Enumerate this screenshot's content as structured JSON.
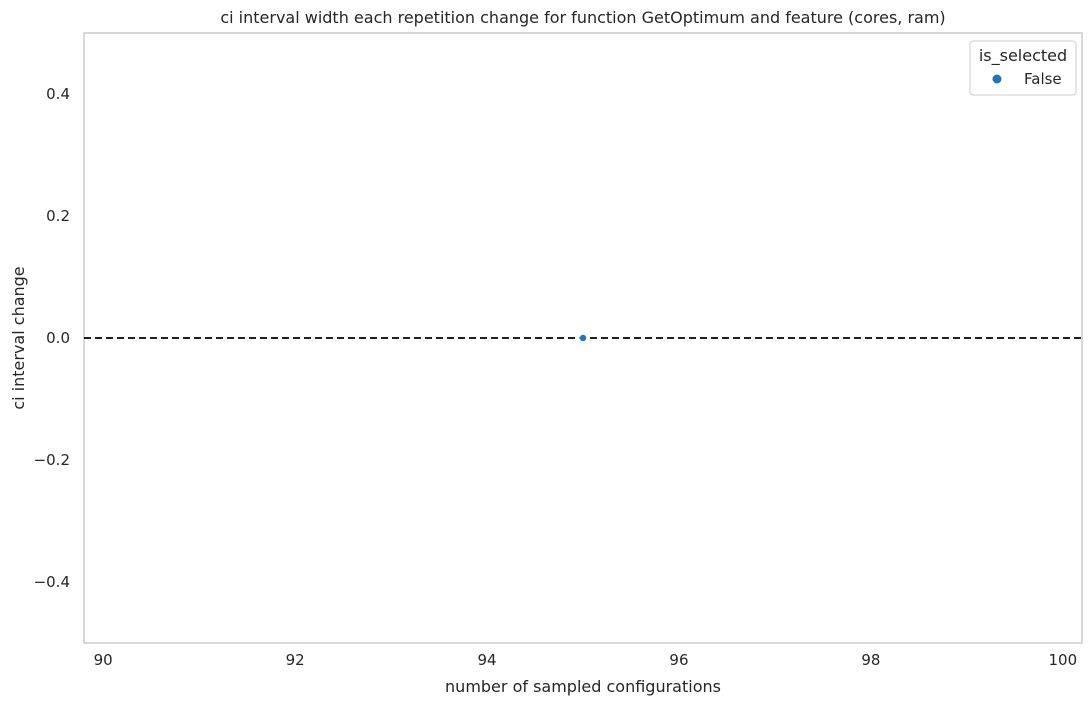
{
  "chart_data": {
    "type": "scatter",
    "title": "ci interval width each repetition change for function GetOptimum and feature (cores, ram)",
    "xlabel": "number of sampled configurations",
    "ylabel": "ci interval change",
    "xlim": [
      89.8,
      100.2
    ],
    "ylim": [
      -0.5,
      0.5
    ],
    "xticks": [
      90,
      92,
      94,
      96,
      98,
      100
    ],
    "xtick_labels": [
      "90",
      "92",
      "94",
      "96",
      "98",
      "100"
    ],
    "yticks": [
      0.4,
      0.2,
      0.0,
      -0.2,
      -0.4
    ],
    "ytick_labels": [
      "0.4",
      "0.2",
      "0.0",
      "−0.2",
      "−0.4"
    ],
    "grid": false,
    "reference_line": {
      "y": 0.0,
      "style": "dashed",
      "color": "#000000"
    },
    "legend": {
      "title": "is_selected",
      "position": "top-right"
    },
    "series": [
      {
        "name": "False",
        "color": "#1f77b4",
        "points": [
          {
            "x": 95,
            "y": 0.0
          }
        ]
      }
    ]
  }
}
